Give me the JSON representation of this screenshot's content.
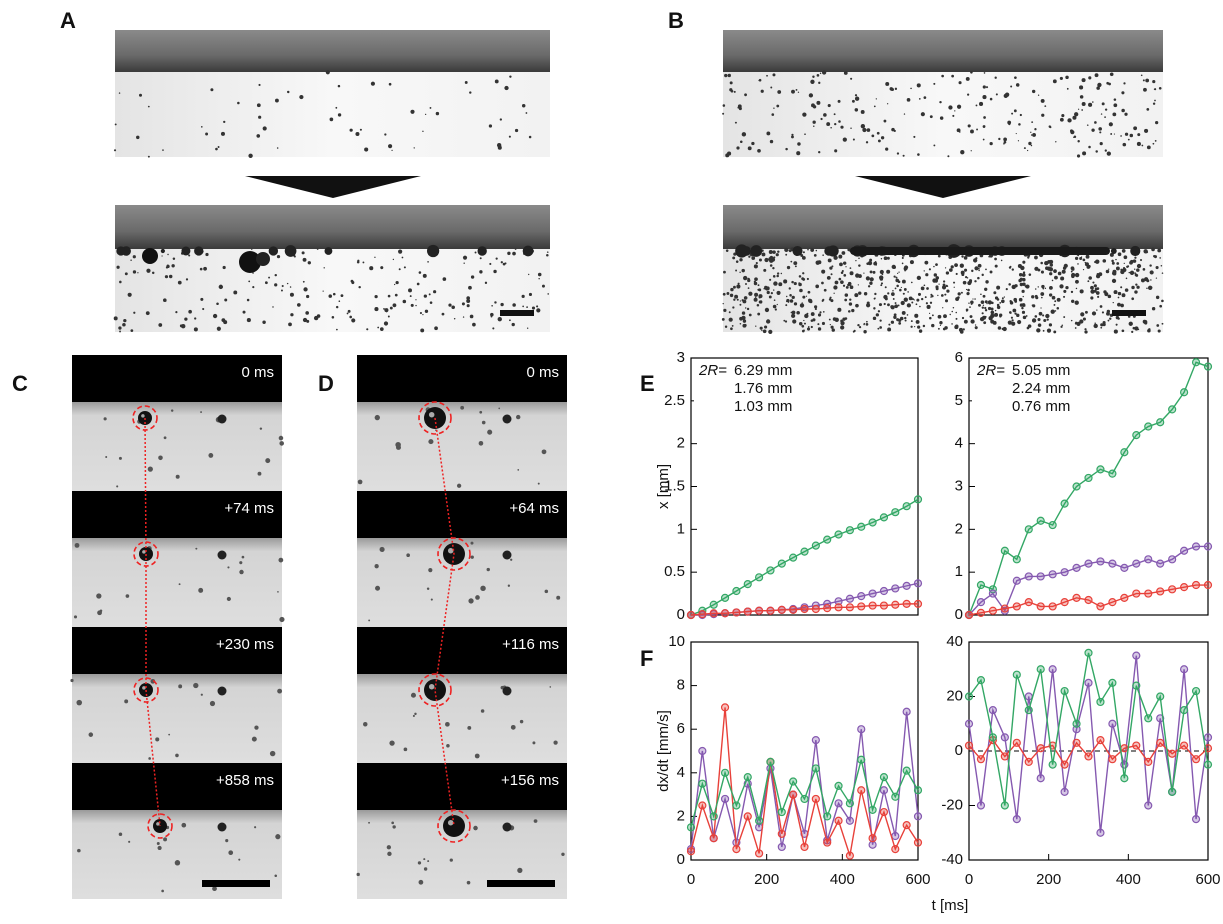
{
  "panel_labels": [
    "A",
    "B",
    "C",
    "D",
    "E",
    "F"
  ],
  "panel_c": {
    "times": [
      "0 ms",
      "+74 ms",
      "+230 ms",
      "+858 ms"
    ]
  },
  "panel_d": {
    "times": [
      "0 ms",
      "+64 ms",
      "+116 ms",
      "+156 ms"
    ]
  },
  "shared_x_label": "t [ms]",
  "chart_data": [
    {
      "type": "line",
      "ylabel": "x [mm]",
      "legend_title": "2R=",
      "x": [
        0,
        30,
        60,
        90,
        120,
        150,
        180,
        210,
        240,
        270,
        300,
        330,
        360,
        390,
        420,
        450,
        480,
        510,
        540,
        570,
        600
      ],
      "series": [
        {
          "name": "6.29 mm",
          "color": "#33a765",
          "values": [
            0,
            0.05,
            0.12,
            0.2,
            0.28,
            0.36,
            0.44,
            0.52,
            0.6,
            0.67,
            0.74,
            0.81,
            0.88,
            0.94,
            0.99,
            1.03,
            1.08,
            1.14,
            1.2,
            1.27,
            1.35
          ]
        },
        {
          "name": "1.76 mm",
          "color": "#8559b0",
          "values": [
            0,
            0,
            0.01,
            0.02,
            0.03,
            0.04,
            0.05,
            0.05,
            0.06,
            0.07,
            0.09,
            0.11,
            0.13,
            0.16,
            0.19,
            0.22,
            0.25,
            0.28,
            0.31,
            0.34,
            0.37
          ]
        },
        {
          "name": "1.03 mm",
          "color": "#e8413a",
          "values": [
            0,
            0.01,
            0.02,
            0.02,
            0.03,
            0.04,
            0.05,
            0.05,
            0.06,
            0.06,
            0.07,
            0.07,
            0.08,
            0.09,
            0.09,
            0.1,
            0.11,
            0.11,
            0.12,
            0.13,
            0.13
          ]
        }
      ],
      "xlim": [
        0,
        600
      ],
      "ylim": [
        0,
        3
      ],
      "yticks": [
        0,
        0.5,
        1,
        1.5,
        2,
        2.5,
        3
      ]
    },
    {
      "type": "line",
      "legend_title": "2R=",
      "x": [
        0,
        30,
        60,
        90,
        120,
        150,
        180,
        210,
        240,
        270,
        300,
        330,
        360,
        390,
        420,
        450,
        480,
        510,
        540,
        570,
        600
      ],
      "series": [
        {
          "name": "5.05 mm",
          "color": "#33a765",
          "values": [
            0,
            0.7,
            0.6,
            1.5,
            1.3,
            2.0,
            2.2,
            2.1,
            2.6,
            3.0,
            3.2,
            3.4,
            3.3,
            3.8,
            4.2,
            4.4,
            4.5,
            4.8,
            5.2,
            5.9,
            5.8
          ]
        },
        {
          "name": "2.24 mm",
          "color": "#8559b0",
          "values": [
            0,
            0.3,
            0.5,
            0.1,
            0.8,
            0.9,
            0.9,
            0.95,
            1.0,
            1.1,
            1.2,
            1.25,
            1.2,
            1.1,
            1.2,
            1.3,
            1.2,
            1.3,
            1.5,
            1.6,
            1.6
          ]
        },
        {
          "name": "0.76 mm",
          "color": "#e8413a",
          "values": [
            0,
            0.05,
            0.1,
            0.15,
            0.2,
            0.3,
            0.2,
            0.2,
            0.3,
            0.4,
            0.35,
            0.2,
            0.3,
            0.4,
            0.5,
            0.5,
            0.55,
            0.6,
            0.65,
            0.7,
            0.7
          ]
        }
      ],
      "xlim": [
        0,
        600
      ],
      "ylim": [
        0,
        6
      ],
      "yticks": [
        0,
        1,
        2,
        3,
        4,
        5,
        6
      ]
    },
    {
      "type": "line",
      "ylabel": "dx/dt [mm/s]",
      "x": [
        0,
        30,
        60,
        90,
        120,
        150,
        180,
        210,
        240,
        270,
        300,
        330,
        360,
        390,
        420,
        450,
        480,
        510,
        540,
        570,
        600
      ],
      "series": [
        {
          "color": "#8559b0",
          "values": [
            0.5,
            5,
            1,
            2.8,
            0.8,
            3.5,
            1.5,
            4.2,
            0.6,
            3,
            1.2,
            5.5,
            0.9,
            2.6,
            1.8,
            6,
            0.7,
            3.2,
            1.1,
            6.8,
            2
          ]
        },
        {
          "color": "#e8413a",
          "values": [
            0.4,
            2.5,
            1,
            7,
            0.5,
            2,
            0.3,
            4.5,
            1.2,
            3,
            0.6,
            2.8,
            0.8,
            1.8,
            0.2,
            3.2,
            1,
            2.2,
            0.5,
            1.6,
            0.8
          ]
        },
        {
          "color": "#33a765",
          "values": [
            1.5,
            3.5,
            2,
            4,
            2.5,
            3.8,
            1.8,
            4.5,
            2.2,
            3.6,
            2.8,
            4.2,
            2,
            3.4,
            2.6,
            4.6,
            2.3,
            3.8,
            2.9,
            4.1,
            3.2
          ]
        }
      ],
      "xlim": [
        0,
        600
      ],
      "xticks": [
        0,
        200,
        400,
        600
      ],
      "ylim": [
        0,
        10
      ],
      "yticks": [
        0,
        2,
        4,
        6,
        8,
        10
      ]
    },
    {
      "type": "line",
      "zero_line": true,
      "x": [
        0,
        30,
        60,
        90,
        120,
        150,
        180,
        210,
        240,
        270,
        300,
        330,
        360,
        390,
        420,
        450,
        480,
        510,
        540,
        570,
        600
      ],
      "series": [
        {
          "color": "#8559b0",
          "values": [
            10,
            -20,
            15,
            5,
            -25,
            20,
            -10,
            30,
            -15,
            8,
            25,
            -30,
            10,
            -5,
            35,
            -20,
            12,
            -15,
            30,
            -25,
            5
          ]
        },
        {
          "color": "#e8413a",
          "values": [
            2,
            -3,
            4,
            -2,
            3,
            -4,
            1,
            2,
            -5,
            3,
            -2,
            4,
            -3,
            1,
            2,
            -4,
            3,
            -1,
            2,
            -3,
            1
          ]
        },
        {
          "color": "#33a765",
          "values": [
            20,
            26,
            5,
            -20,
            28,
            15,
            30,
            -5,
            22,
            10,
            36,
            18,
            25,
            -10,
            24,
            12,
            20,
            -15,
            15,
            22,
            -5
          ]
        }
      ],
      "xlim": [
        0,
        600
      ],
      "xticks": [
        0,
        200,
        400,
        600
      ],
      "ylim": [
        -40,
        40
      ],
      "yticks": [
        -40,
        -20,
        0,
        20,
        40
      ]
    }
  ]
}
